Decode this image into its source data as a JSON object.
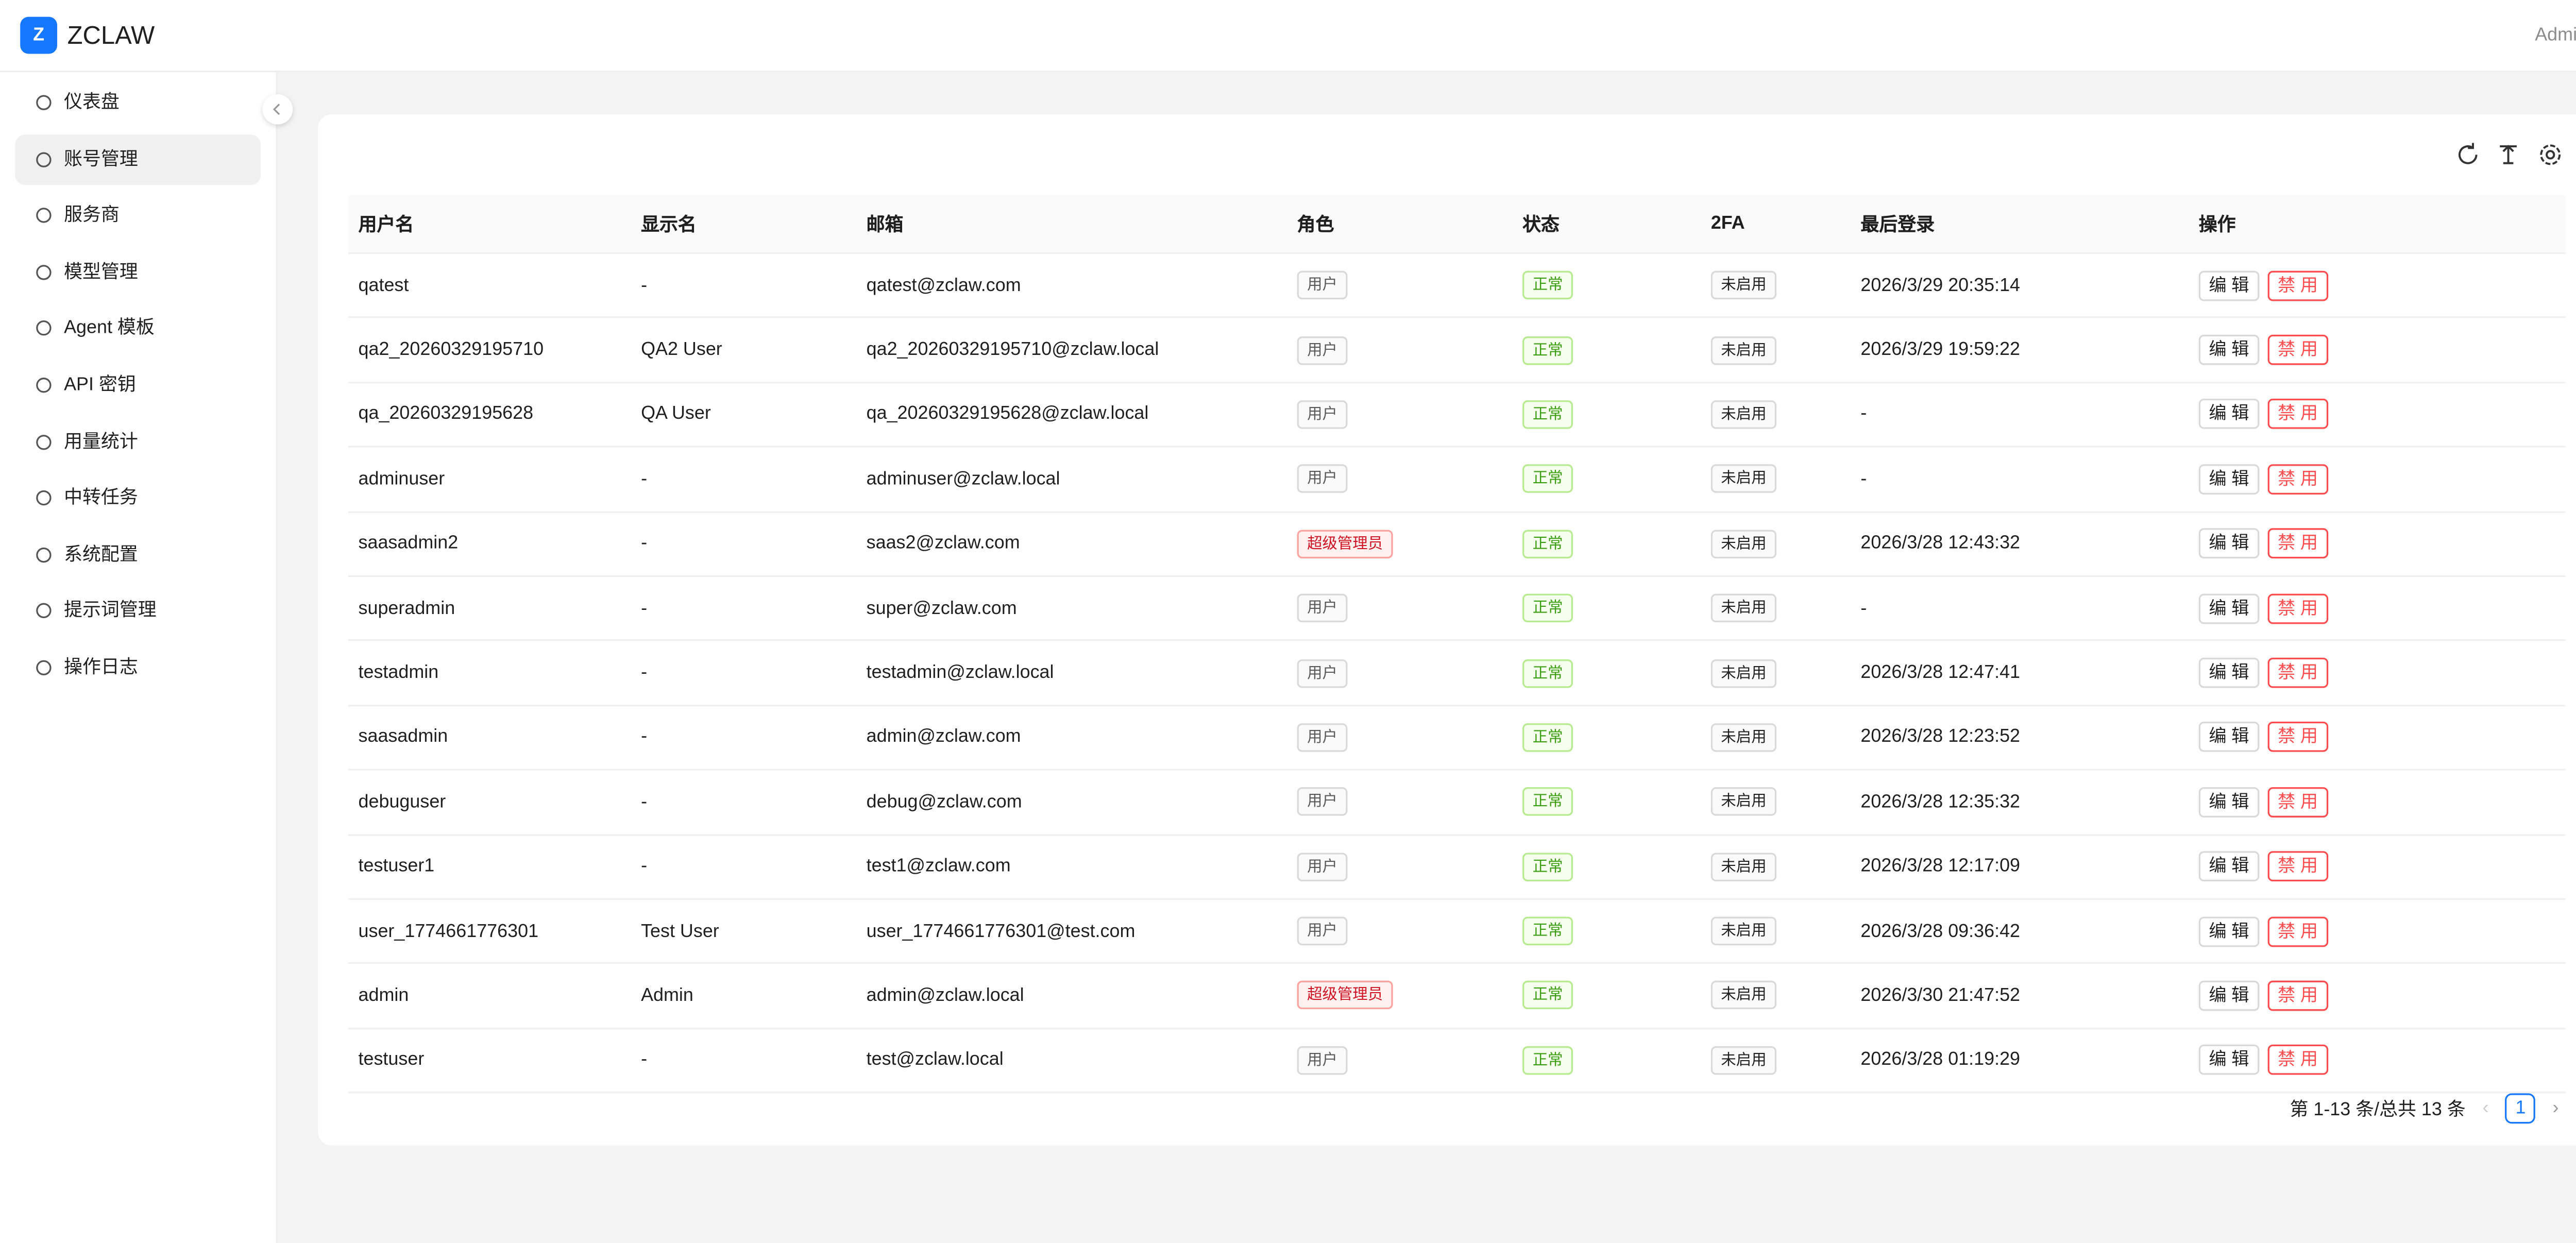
{
  "header": {
    "logo_letter": "Z",
    "brand": "ZCLAW",
    "user": "Admin"
  },
  "nav": [
    {
      "label": "仪表盘"
    },
    {
      "label": "账号管理",
      "active": true
    },
    {
      "label": "服务商"
    },
    {
      "label": "模型管理"
    },
    {
      "label": "Agent 模板"
    },
    {
      "label": "API 密钥"
    },
    {
      "label": "用量统计"
    },
    {
      "label": "中转任务"
    },
    {
      "label": "系统配置"
    },
    {
      "label": "提示词管理"
    },
    {
      "label": "操作日志"
    }
  ],
  "table": {
    "columns": [
      "用户名",
      "显示名",
      "邮箱",
      "角色",
      "状态",
      "2FA",
      "最后登录",
      "操作"
    ],
    "row_actions": [
      "编 辑",
      "禁 用"
    ],
    "rows": [
      [
        "qatest",
        "-",
        "qatest@zclaw.com",
        "用户",
        "正常",
        "未启用",
        "2026/3/29 20:35:14"
      ],
      [
        "qa2_20260329195710",
        "QA2 User",
        "qa2_20260329195710@zclaw.local",
        "用户",
        "正常",
        "未启用",
        "2026/3/29 19:59:22"
      ],
      [
        "qa_20260329195628",
        "QA User",
        "qa_20260329195628@zclaw.local",
        "用户",
        "正常",
        "未启用",
        "-"
      ],
      [
        "adminuser",
        "-",
        "adminuser@zclaw.local",
        "用户",
        "正常",
        "未启用",
        "-"
      ],
      [
        "saasadmin2",
        "-",
        "saas2@zclaw.com",
        "超级管理员",
        "正常",
        "未启用",
        "2026/3/28 12:43:32"
      ],
      [
        "superadmin",
        "-",
        "super@zclaw.com",
        "用户",
        "正常",
        "未启用",
        "-"
      ],
      [
        "testadmin",
        "-",
        "testadmin@zclaw.local",
        "用户",
        "正常",
        "未启用",
        "2026/3/28 12:47:41"
      ],
      [
        "saasadmin",
        "-",
        "admin@zclaw.com",
        "用户",
        "正常",
        "未启用",
        "2026/3/28 12:23:52"
      ],
      [
        "debuguser",
        "-",
        "debug@zclaw.com",
        "用户",
        "正常",
        "未启用",
        "2026/3/28 12:35:32"
      ],
      [
        "testuser1",
        "-",
        "test1@zclaw.com",
        "用户",
        "正常",
        "未启用",
        "2026/3/28 12:17:09"
      ],
      [
        "user_1774661776301",
        "Test User",
        "user_1774661776301@test.com",
        "用户",
        "正常",
        "未启用",
        "2026/3/28 09:36:42"
      ],
      [
        "admin",
        "Admin",
        "admin@zclaw.local",
        "超级管理员",
        "正常",
        "未启用",
        "2026/3/30 21:47:52"
      ],
      [
        "testuser",
        "-",
        "test@zclaw.local",
        "用户",
        "正常",
        "未启用",
        "2026/3/28 01:19:29"
      ]
    ],
    "role_colors": [
      "#595959",
      "#595959",
      "#595959",
      "#595959",
      "#cf1322",
      "#595959",
      "#595959",
      "#595959",
      "#595959",
      "#595959",
      "#595959",
      "#cf1322",
      "#595959"
    ]
  },
  "pagination": {
    "summary": "第 1-13 条/总共 13 条",
    "current": "1"
  }
}
